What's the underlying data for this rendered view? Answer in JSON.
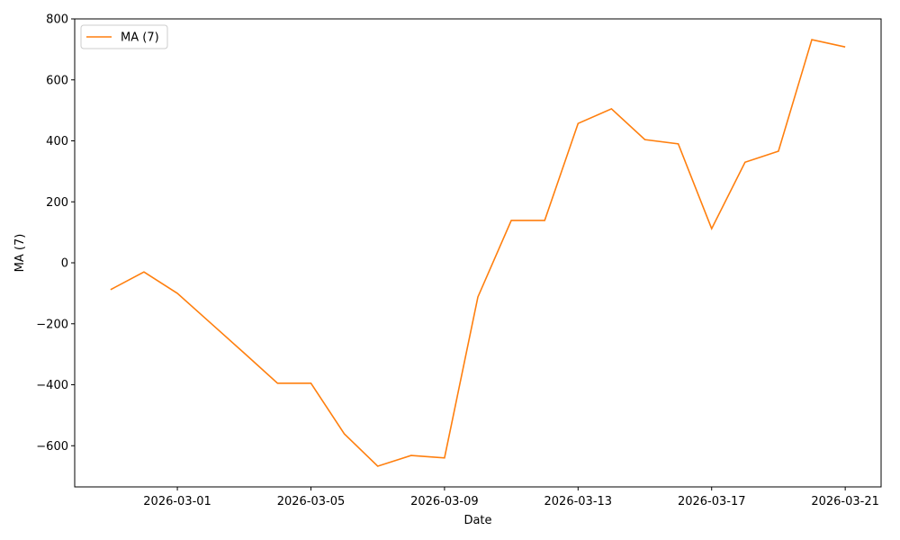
{
  "chart_data": {
    "type": "line",
    "x_label": "Date",
    "y_label": "MA (7)",
    "x": [
      "2026-02-27",
      "2026-02-28",
      "2026-03-01",
      "2026-03-02",
      "2026-03-03",
      "2026-03-04",
      "2026-03-05",
      "2026-03-06",
      "2026-03-07",
      "2026-03-08",
      "2026-03-09",
      "2026-03-10",
      "2026-03-11",
      "2026-03-12",
      "2026-03-13",
      "2026-03-14",
      "2026-03-15",
      "2026-03-16",
      "2026-03-17",
      "2026-03-18",
      "2026-03-19",
      "2026-03-20",
      "2026-03-21"
    ],
    "series": [
      {
        "name": "MA (7)",
        "color": "#ff7f0e",
        "values": [
          -88,
          -30,
          -100,
          -198,
          -296,
          -395,
          -395,
          -561,
          -667,
          -632,
          -640,
          -112,
          139,
          139,
          457,
          505,
          404,
          390,
          112,
          330,
          366,
          732,
          708
        ]
      }
    ],
    "xlim": [
      "2026-02-25T22:13",
      "2026-03-22T01:47"
    ],
    "xticks": [
      "2026-03-01",
      "2026-03-05",
      "2026-03-09",
      "2026-03-13",
      "2026-03-17",
      "2026-03-21"
    ],
    "ylim": [
      -735,
      800
    ],
    "yticks": [
      {
        "value": -600,
        "label": "−600"
      },
      {
        "value": -400,
        "label": "−400"
      },
      {
        "value": -200,
        "label": "−200"
      },
      0,
      200,
      400,
      600,
      800
    ],
    "grid": false,
    "legend": "upper left"
  }
}
